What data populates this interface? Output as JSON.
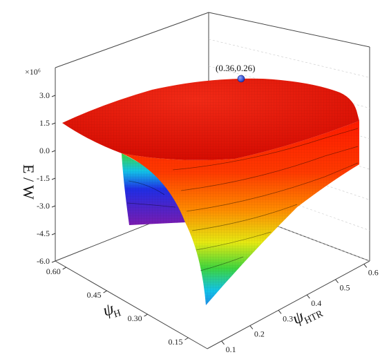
{
  "chart_data": {
    "type": "surface",
    "title": "",
    "zlabel": "E / W",
    "zscale_label": "×10⁶",
    "xlabel_symbol": "ψ",
    "xlabel_sub": "HTR",
    "ylabel_symbol": "ψ",
    "ylabel_sub": "H",
    "z_ticks": [
      "3.0",
      "1.5",
      "0.0",
      "-1.5",
      "-3.0",
      "-4.5",
      "-6.0"
    ],
    "z_tick_values": [
      3.0,
      1.5,
      0.0,
      -1.5,
      -3.0,
      -4.5,
      -6.0
    ],
    "zlim": [
      -6.0,
      4.5
    ],
    "x_ticks": [
      "0.1",
      "0.2",
      "0.3",
      "0.4",
      "0.5",
      "0.6"
    ],
    "x_tick_values": [
      0.1,
      0.2,
      0.3,
      0.4,
      0.5,
      0.6
    ],
    "xlim": [
      0.05,
      0.62
    ],
    "y_ticks": [
      "0.15",
      "0.30",
      "0.45",
      "0.60"
    ],
    "y_tick_values": [
      0.15,
      0.3,
      0.45,
      0.6
    ],
    "ylim": [
      0.08,
      0.64
    ],
    "optimum": {
      "x": 0.36,
      "y": 0.26,
      "label": "(0.36,0.26)"
    },
    "colormap": [
      "#6a1bb0",
      "#1f2ee6",
      "#12c3e8",
      "#3ed63e",
      "#e6ea12",
      "#ff8a00",
      "#ff1a00"
    ],
    "grid": true
  }
}
